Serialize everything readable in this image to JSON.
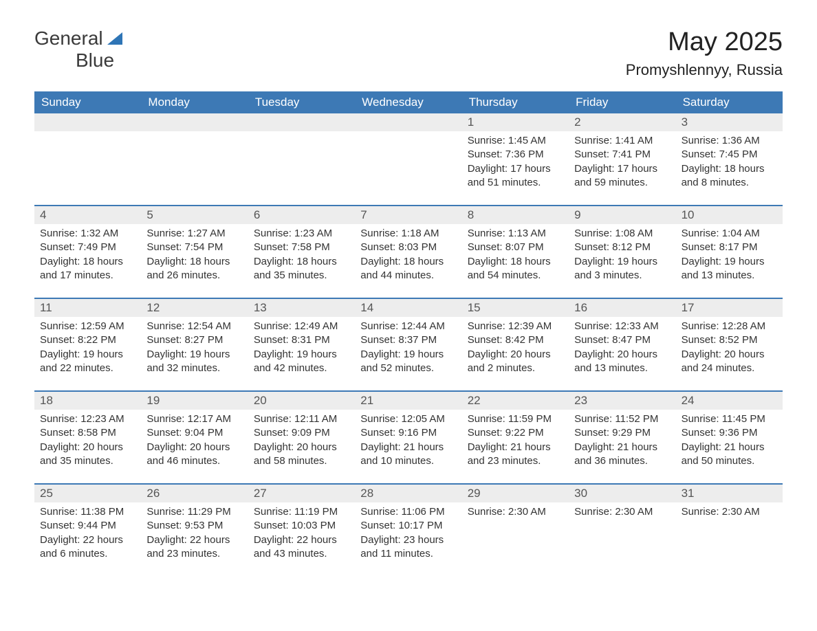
{
  "brand": {
    "word1": "General",
    "word2": "Blue"
  },
  "title": "May 2025",
  "location": "Promyshlennyy, Russia",
  "colors": {
    "headerBg": "#3d79b5",
    "headerText": "#ffffff",
    "dayNumBg": "#ededed",
    "weekBorder": "#3d79b5",
    "brandBlue": "#2e75b6",
    "bodyText": "#333333",
    "pageBg": "#ffffff"
  },
  "typography": {
    "title_fontsize": 38,
    "location_fontsize": 22,
    "header_fontsize": 17,
    "cell_fontsize": 15
  },
  "layout": {
    "columns": 7,
    "rows": 5,
    "leading_blanks": 4
  },
  "dayNames": [
    "Sunday",
    "Monday",
    "Tuesday",
    "Wednesday",
    "Thursday",
    "Friday",
    "Saturday"
  ],
  "days": [
    {
      "n": 1,
      "sunrise": "1:45 AM",
      "sunset": "7:36 PM",
      "daylight": "17 hours and 51 minutes."
    },
    {
      "n": 2,
      "sunrise": "1:41 AM",
      "sunset": "7:41 PM",
      "daylight": "17 hours and 59 minutes."
    },
    {
      "n": 3,
      "sunrise": "1:36 AM",
      "sunset": "7:45 PM",
      "daylight": "18 hours and 8 minutes."
    },
    {
      "n": 4,
      "sunrise": "1:32 AM",
      "sunset": "7:49 PM",
      "daylight": "18 hours and 17 minutes."
    },
    {
      "n": 5,
      "sunrise": "1:27 AM",
      "sunset": "7:54 PM",
      "daylight": "18 hours and 26 minutes."
    },
    {
      "n": 6,
      "sunrise": "1:23 AM",
      "sunset": "7:58 PM",
      "daylight": "18 hours and 35 minutes."
    },
    {
      "n": 7,
      "sunrise": "1:18 AM",
      "sunset": "8:03 PM",
      "daylight": "18 hours and 44 minutes."
    },
    {
      "n": 8,
      "sunrise": "1:13 AM",
      "sunset": "8:07 PM",
      "daylight": "18 hours and 54 minutes."
    },
    {
      "n": 9,
      "sunrise": "1:08 AM",
      "sunset": "8:12 PM",
      "daylight": "19 hours and 3 minutes."
    },
    {
      "n": 10,
      "sunrise": "1:04 AM",
      "sunset": "8:17 PM",
      "daylight": "19 hours and 13 minutes."
    },
    {
      "n": 11,
      "sunrise": "12:59 AM",
      "sunset": "8:22 PM",
      "daylight": "19 hours and 22 minutes."
    },
    {
      "n": 12,
      "sunrise": "12:54 AM",
      "sunset": "8:27 PM",
      "daylight": "19 hours and 32 minutes."
    },
    {
      "n": 13,
      "sunrise": "12:49 AM",
      "sunset": "8:31 PM",
      "daylight": "19 hours and 42 minutes."
    },
    {
      "n": 14,
      "sunrise": "12:44 AM",
      "sunset": "8:37 PM",
      "daylight": "19 hours and 52 minutes."
    },
    {
      "n": 15,
      "sunrise": "12:39 AM",
      "sunset": "8:42 PM",
      "daylight": "20 hours and 2 minutes."
    },
    {
      "n": 16,
      "sunrise": "12:33 AM",
      "sunset": "8:47 PM",
      "daylight": "20 hours and 13 minutes."
    },
    {
      "n": 17,
      "sunrise": "12:28 AM",
      "sunset": "8:52 PM",
      "daylight": "20 hours and 24 minutes."
    },
    {
      "n": 18,
      "sunrise": "12:23 AM",
      "sunset": "8:58 PM",
      "daylight": "20 hours and 35 minutes."
    },
    {
      "n": 19,
      "sunrise": "12:17 AM",
      "sunset": "9:04 PM",
      "daylight": "20 hours and 46 minutes."
    },
    {
      "n": 20,
      "sunrise": "12:11 AM",
      "sunset": "9:09 PM",
      "daylight": "20 hours and 58 minutes."
    },
    {
      "n": 21,
      "sunrise": "12:05 AM",
      "sunset": "9:16 PM",
      "daylight": "21 hours and 10 minutes."
    },
    {
      "n": 22,
      "sunrise": "11:59 PM",
      "sunset": "9:22 PM",
      "daylight": "21 hours and 23 minutes."
    },
    {
      "n": 23,
      "sunrise": "11:52 PM",
      "sunset": "9:29 PM",
      "daylight": "21 hours and 36 minutes."
    },
    {
      "n": 24,
      "sunrise": "11:45 PM",
      "sunset": "9:36 PM",
      "daylight": "21 hours and 50 minutes."
    },
    {
      "n": 25,
      "sunrise": "11:38 PM",
      "sunset": "9:44 PM",
      "daylight": "22 hours and 6 minutes."
    },
    {
      "n": 26,
      "sunrise": "11:29 PM",
      "sunset": "9:53 PM",
      "daylight": "22 hours and 23 minutes."
    },
    {
      "n": 27,
      "sunrise": "11:19 PM",
      "sunset": "10:03 PM",
      "daylight": "22 hours and 43 minutes."
    },
    {
      "n": 28,
      "sunrise": "11:06 PM",
      "sunset": "10:17 PM",
      "daylight": "23 hours and 11 minutes."
    },
    {
      "n": 29,
      "sunrise": "2:30 AM"
    },
    {
      "n": 30,
      "sunrise": "2:30 AM"
    },
    {
      "n": 31,
      "sunrise": "2:30 AM"
    }
  ],
  "labels": {
    "sunrise": "Sunrise: ",
    "sunset": "Sunset: ",
    "daylight": "Daylight: "
  }
}
